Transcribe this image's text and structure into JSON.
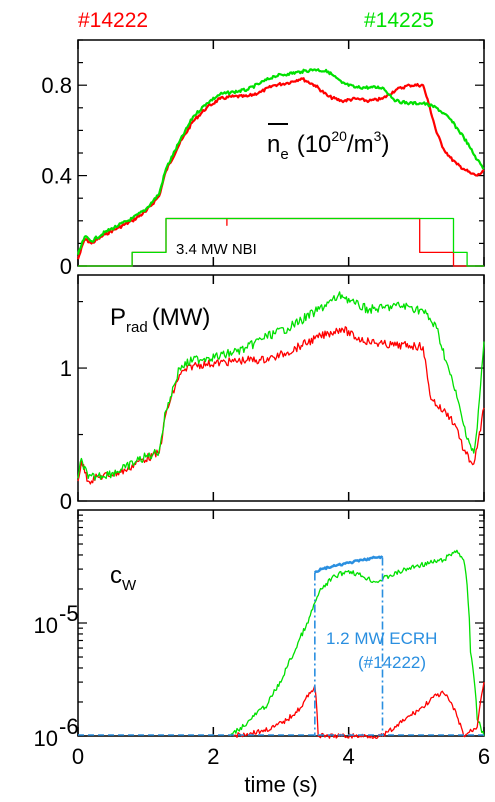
{
  "shot_labels": {
    "left": "#14222",
    "right": "#14225"
  },
  "colors": {
    "shot_14222": "#ff0000",
    "shot_14225": "#00e000",
    "ecrh": "#2a8fe0",
    "axis": "#000000"
  },
  "chart_data": [
    {
      "type": "line",
      "panel": "top",
      "annotation": {
        "symbol": "n",
        "subscript": "e",
        "unit": "(10",
        "unit_sup": "20",
        "unit_rest": "/m",
        "unit_sup2": "3",
        "unit_close": ")"
      },
      "nbi_label": "3.4 MW NBI",
      "xlim": [
        0,
        6
      ],
      "ylim": [
        0,
        1.0
      ],
      "yticks": [
        0,
        0.4,
        0.8
      ],
      "ytick_labels": [
        "0",
        "0.4",
        "0.8"
      ],
      "series": [
        {
          "name": "#14222",
          "color": "#ff0000",
          "x": [
            0,
            0.1,
            0.2,
            0.4,
            0.6,
            0.8,
            1.0,
            1.2,
            1.3,
            1.5,
            1.7,
            1.9,
            2.1,
            2.3,
            2.5,
            2.7,
            2.9,
            3.1,
            3.3,
            3.5,
            3.7,
            3.9,
            4.1,
            4.3,
            4.5,
            4.7,
            4.9,
            5.1,
            5.2,
            5.3,
            5.4,
            5.5,
            5.6,
            5.7,
            5.8,
            5.9,
            6.0
          ],
          "y": [
            0.03,
            0.12,
            0.1,
            0.14,
            0.17,
            0.2,
            0.24,
            0.31,
            0.42,
            0.54,
            0.64,
            0.7,
            0.74,
            0.75,
            0.75,
            0.77,
            0.8,
            0.81,
            0.83,
            0.8,
            0.75,
            0.73,
            0.74,
            0.73,
            0.74,
            0.78,
            0.8,
            0.8,
            0.7,
            0.59,
            0.52,
            0.48,
            0.45,
            0.43,
            0.41,
            0.4,
            0.42
          ]
        },
        {
          "name": "#14225",
          "color": "#00e000",
          "x": [
            0,
            0.1,
            0.2,
            0.4,
            0.6,
            0.8,
            1.0,
            1.2,
            1.3,
            1.5,
            1.7,
            1.9,
            2.1,
            2.3,
            2.5,
            2.7,
            2.9,
            3.1,
            3.3,
            3.5,
            3.7,
            3.9,
            4.1,
            4.3,
            4.5,
            4.7,
            4.9,
            5.1,
            5.3,
            5.5,
            5.7,
            5.8,
            5.9,
            6.0
          ],
          "y": [
            0.05,
            0.13,
            0.11,
            0.15,
            0.18,
            0.21,
            0.25,
            0.32,
            0.43,
            0.55,
            0.66,
            0.72,
            0.76,
            0.77,
            0.78,
            0.81,
            0.84,
            0.85,
            0.86,
            0.87,
            0.86,
            0.81,
            0.79,
            0.79,
            0.79,
            0.73,
            0.72,
            0.72,
            0.7,
            0.65,
            0.57,
            0.52,
            0.47,
            0.43
          ]
        },
        {
          "name": "NBI #14222",
          "color": "#ff0000",
          "x": [
            0,
            0.8,
            0.8,
            1.3,
            1.3,
            2.2,
            2.2,
            2.2,
            5.05,
            5.05,
            5.55,
            5.55,
            6.0
          ],
          "y": [
            0.0,
            0.0,
            0.06,
            0.06,
            0.21,
            0.21,
            0.18,
            0.21,
            0.21,
            0.06,
            0.06,
            0.0,
            0.0
          ]
        },
        {
          "name": "NBI #14225",
          "color": "#00e000",
          "x": [
            0,
            0.8,
            0.8,
            1.3,
            1.3,
            5.55,
            5.55,
            5.75,
            5.75,
            6.0
          ],
          "y": [
            0.0,
            0.0,
            0.06,
            0.06,
            0.21,
            0.21,
            0.06,
            0.06,
            0.0,
            0.0
          ]
        }
      ]
    },
    {
      "type": "line",
      "panel": "middle",
      "annotation": {
        "symbol": "P",
        "subscript": "rad",
        "unit": "(MW)"
      },
      "xlim": [
        0,
        6
      ],
      "ylim": [
        0,
        1.7
      ],
      "yticks": [
        0,
        1
      ],
      "ytick_labels": [
        "0",
        "1"
      ],
      "series": [
        {
          "name": "#14222",
          "color": "#ff0000",
          "x": [
            0,
            0.05,
            0.15,
            0.3,
            0.5,
            0.7,
            0.9,
            1.1,
            1.2,
            1.3,
            1.5,
            1.7,
            1.9,
            2.1,
            2.3,
            2.5,
            2.7,
            2.9,
            3.1,
            3.3,
            3.5,
            3.7,
            3.9,
            4.1,
            4.3,
            4.5,
            4.7,
            4.9,
            5.1,
            5.2,
            5.3,
            5.4,
            5.5,
            5.6,
            5.7,
            5.8,
            5.85,
            5.9,
            6.0
          ],
          "y": [
            0.15,
            0.3,
            0.15,
            0.18,
            0.2,
            0.23,
            0.3,
            0.34,
            0.36,
            0.66,
            0.95,
            1.02,
            1.03,
            1.04,
            1.05,
            1.06,
            1.06,
            1.08,
            1.12,
            1.17,
            1.22,
            1.26,
            1.3,
            1.23,
            1.2,
            1.18,
            1.17,
            1.17,
            1.16,
            0.8,
            0.72,
            0.68,
            0.63,
            0.55,
            0.38,
            0.3,
            0.28,
            0.4,
            0.7
          ]
        },
        {
          "name": "#14225",
          "color": "#00e000",
          "x": [
            0,
            0.05,
            0.15,
            0.3,
            0.5,
            0.7,
            0.9,
            1.1,
            1.2,
            1.3,
            1.5,
            1.7,
            1.9,
            2.1,
            2.3,
            2.5,
            2.7,
            2.9,
            3.1,
            3.3,
            3.5,
            3.7,
            3.9,
            4.1,
            4.3,
            4.5,
            4.7,
            4.9,
            5.1,
            5.3,
            5.5,
            5.6,
            5.7,
            5.8,
            5.85,
            5.9,
            6.0
          ],
          "y": [
            0.17,
            0.32,
            0.17,
            0.19,
            0.21,
            0.25,
            0.31,
            0.35,
            0.38,
            0.68,
            1.0,
            1.06,
            1.08,
            1.09,
            1.12,
            1.15,
            1.22,
            1.26,
            1.3,
            1.36,
            1.42,
            1.49,
            1.55,
            1.48,
            1.44,
            1.45,
            1.47,
            1.46,
            1.43,
            1.3,
            0.95,
            0.78,
            0.57,
            0.42,
            0.36,
            0.55,
            1.2
          ]
        }
      ]
    },
    {
      "type": "line",
      "panel": "bottom",
      "annotation": {
        "symbol": "c",
        "subscript": "W"
      },
      "ecrh_label_1": "1.2 MW ECRH",
      "ecrh_label_2": "(#14222)",
      "scale": "log",
      "xlim": [
        0,
        6
      ],
      "ylim": [
        1e-06,
        0.0001
      ],
      "yticks": [
        1e-06,
        1e-05
      ],
      "ytick_labels": [
        {
          "base": "10",
          "exp": "-6"
        },
        {
          "base": "10",
          "exp": "-5"
        }
      ],
      "xticks": [
        0,
        2,
        4,
        6
      ],
      "xtick_labels": [
        "0",
        "2",
        "4",
        "6"
      ],
      "xlabel": "time (s)",
      "series": [
        {
          "name": "#14225",
          "color": "#00e000",
          "x": [
            2.25,
            2.5,
            2.8,
            3.0,
            3.2,
            3.4,
            3.6,
            3.8,
            4.0,
            4.2,
            4.4,
            4.6,
            4.8,
            5.0,
            5.2,
            5.4,
            5.6,
            5.7,
            5.8,
            5.9,
            6.0
          ],
          "y": [
            1e-06,
            1.3e-06,
            1.9e-06,
            3e-06,
            5.5e-06,
            1e-05,
            2e-05,
            2.6e-05,
            2.9e-05,
            2.6e-05,
            2.3e-05,
            2.6e-05,
            2.9e-05,
            3.2e-05,
            3.4e-05,
            3.6e-05,
            4.4e-05,
            3.6e-05,
            5.5e-06,
            1.4e-06,
            1e-06
          ]
        },
        {
          "name": "#14222",
          "color": "#ff0000",
          "x": [
            2.3,
            2.5,
            2.7,
            2.9,
            3.1,
            3.3,
            3.45,
            3.5,
            3.55,
            3.7,
            3.9,
            4.1,
            4.3,
            4.5,
            4.7,
            4.9,
            5.1,
            5.25,
            5.4,
            5.5,
            5.6,
            5.7,
            5.9,
            6.0
          ],
          "y": [
            1e-06,
            1.05e-06,
            1.1e-06,
            1.2e-06,
            1.4e-06,
            1.8e-06,
            2.5e-06,
            2.8e-06,
            1e-06,
            1e-06,
            1e-06,
            1e-06,
            1e-06,
            1e-06,
            1.2e-06,
            1.5e-06,
            1.8e-06,
            2.2e-06,
            2.4e-06,
            2e-06,
            1.5e-06,
            1e-06,
            1.2e-06,
            3e-06
          ]
        },
        {
          "name": "ECRH #14222",
          "color": "#2a8fe0",
          "x": [
            3.5,
            3.6,
            3.8,
            4.0,
            4.2,
            4.4,
            4.5
          ],
          "y": [
            2.8e-05,
            3e-05,
            3.2e-05,
            3.4e-05,
            3.6e-05,
            3.8e-05,
            3.8e-05
          ]
        }
      ],
      "ecrh_start_x": 3.5,
      "ecrh_end_x": 4.5
    }
  ]
}
